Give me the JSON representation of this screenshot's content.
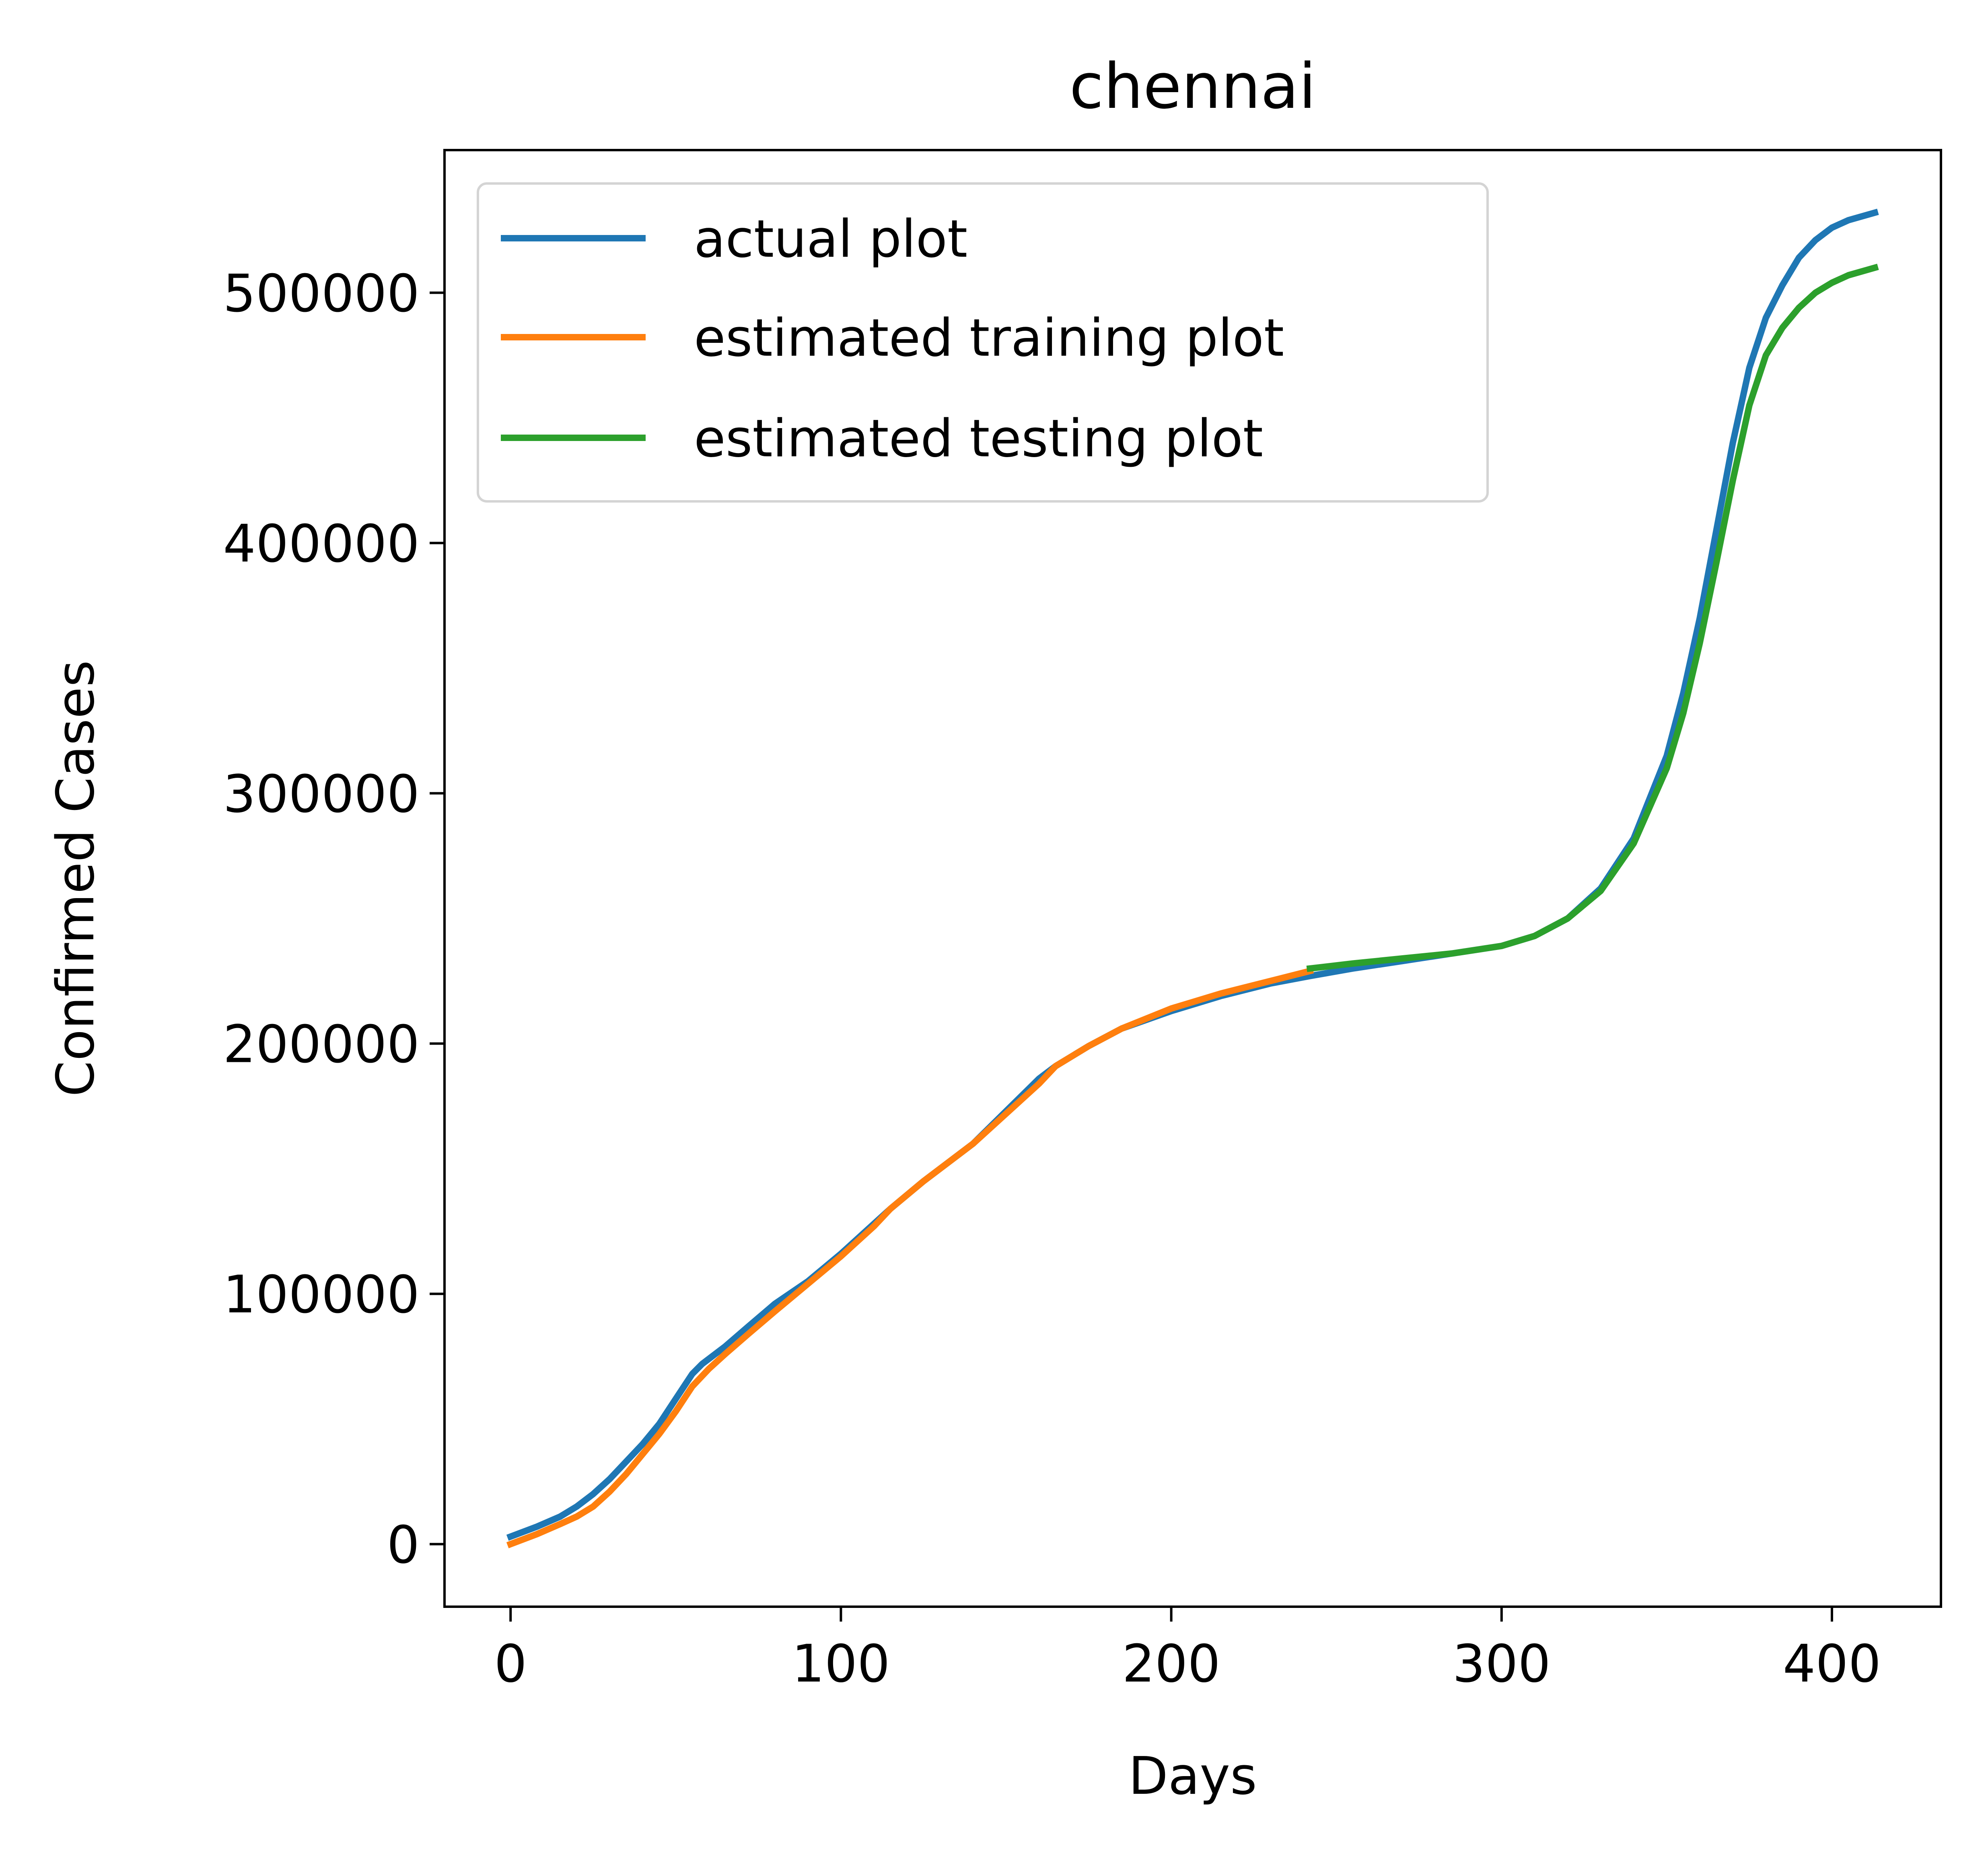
{
  "chart_data": {
    "type": "line",
    "title": "chennai",
    "xlabel": "Days",
    "ylabel": "Confirmed Cases",
    "xlim": [
      -20,
      433
    ],
    "ylim": [
      -25000,
      557000
    ],
    "x_ticks": [
      "0",
      "100",
      "200",
      "300",
      "400"
    ],
    "x_tick_values": [
      0,
      100,
      200,
      300,
      400
    ],
    "y_ticks": [
      "0",
      "100000",
      "200000",
      "300000",
      "400000",
      "500000"
    ],
    "y_tick_values": [
      0,
      100000,
      200000,
      300000,
      400000,
      500000
    ],
    "grid": false,
    "legend_position": "upper-left",
    "series": [
      {
        "name": "actual plot",
        "color": "#1f77b4",
        "x": [
          0,
          8,
          15,
          20,
          25,
          30,
          35,
          40,
          45,
          50,
          55,
          58,
          65,
          72,
          80,
          90,
          100,
          110,
          115,
          125,
          140,
          150,
          160,
          165,
          175,
          185,
          200,
          215,
          230,
          242,
          255,
          270,
          285,
          300,
          310,
          320,
          330,
          340,
          350,
          355,
          360,
          365,
          370,
          375,
          380,
          385,
          390,
          395,
          400,
          405,
          413
        ],
        "y": [
          3000,
          7000,
          11000,
          15000,
          20000,
          26000,
          33000,
          40000,
          48000,
          58000,
          68000,
          72000,
          79000,
          87000,
          96000,
          105000,
          116000,
          128000,
          134000,
          145000,
          160000,
          173000,
          186000,
          191000,
          199000,
          206000,
          213000,
          219000,
          224000,
          227000,
          230000,
          233000,
          236000,
          239000,
          243000,
          250000,
          262000,
          282000,
          315000,
          340000,
          370000,
          405000,
          440000,
          470000,
          490000,
          503000,
          514000,
          521000,
          526000,
          529000,
          532000
        ]
      },
      {
        "name": "estimated training plot",
        "color": "#ff7f0e",
        "x": [
          0,
          8,
          15,
          20,
          25,
          30,
          35,
          40,
          45,
          50,
          55,
          60,
          65,
          72,
          80,
          90,
          100,
          110,
          115,
          125,
          140,
          150,
          160,
          165,
          175,
          185,
          200,
          215,
          230,
          242
        ],
        "y": [
          0,
          4000,
          8000,
          11000,
          15000,
          21000,
          28000,
          36000,
          44000,
          53000,
          63000,
          70000,
          76000,
          84000,
          93000,
          104000,
          115000,
          127000,
          134000,
          145000,
          160000,
          172000,
          184000,
          191000,
          199000,
          206000,
          214000,
          220000,
          225000,
          229000
        ]
      },
      {
        "name": "estimated testing plot",
        "color": "#2ca02c",
        "x": [
          242,
          255,
          270,
          285,
          300,
          310,
          320,
          330,
          340,
          350,
          355,
          360,
          365,
          370,
          375,
          380,
          385,
          390,
          395,
          400,
          405,
          413
        ],
        "y": [
          230000,
          232000,
          234000,
          236000,
          239000,
          243000,
          250000,
          261000,
          280000,
          310000,
          332000,
          360000,
          392000,
          425000,
          455000,
          475000,
          486000,
          494000,
          500000,
          504000,
          507000,
          510000
        ]
      }
    ]
  }
}
